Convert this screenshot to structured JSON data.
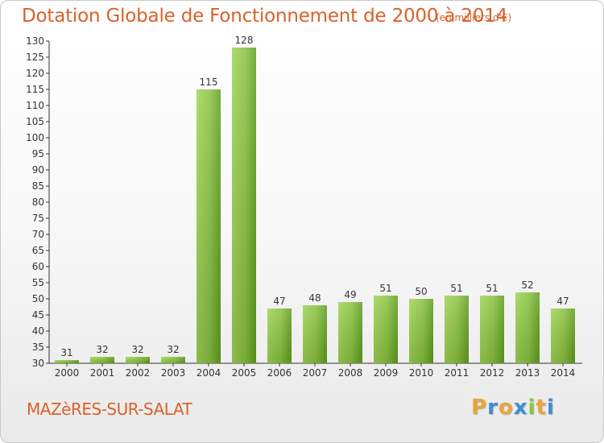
{
  "title": "Dotation Globale de Fonctionnement de 2000 à 2014",
  "subtitle": "(en milliers d'€)",
  "commune": "MAZèRES-SUR-SALAT",
  "logo": {
    "letters": [
      "P",
      "r",
      "o",
      "x",
      "i",
      "t",
      "i"
    ],
    "colors": [
      "#e8a53a",
      "#3a8fd1",
      "#e8a53a",
      "#3a8fd1",
      "#8cc63f",
      "#e8a53a",
      "#3a8fd1"
    ]
  },
  "colors": {
    "bar_light": "#9fd454",
    "bar_dark": "#5f9e1e",
    "text_accent": "#d9622b",
    "axis": "#333333",
    "grid": "#dddddd"
  },
  "chart_data": {
    "type": "bar",
    "title": "Dotation Globale de Fonctionnement de 2000 à 2014",
    "subtitle": "(en milliers d'€)",
    "xlabel": "",
    "ylabel": "",
    "categories": [
      "2000",
      "2001",
      "2002",
      "2003",
      "2004",
      "2005",
      "2006",
      "2007",
      "2008",
      "2009",
      "2010",
      "2011",
      "2012",
      "2013",
      "2014"
    ],
    "values": [
      31,
      32,
      32,
      32,
      115,
      128,
      47,
      48,
      49,
      51,
      50,
      51,
      51,
      52,
      47
    ],
    "ylim": [
      30,
      130
    ],
    "ytick_step": 5,
    "grid": false,
    "legend": "none"
  }
}
